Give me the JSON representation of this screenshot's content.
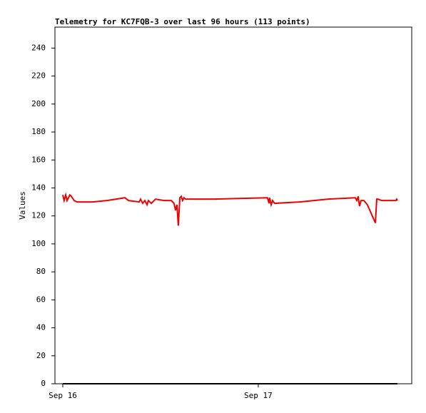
{
  "chart_data": {
    "type": "line",
    "title": "Telemetry for KC7FQB-3 over last 96 hours (113 points)",
    "y_label": "Values",
    "xlim": [
      -0.04,
      1.785
    ],
    "xticks": [
      {
        "value": 0,
        "label": "Sep 16"
      },
      {
        "value": 1,
        "label": "Sep 17"
      }
    ],
    "ylim": [
      0,
      255
    ],
    "yticks": [
      0,
      20,
      40,
      60,
      80,
      100,
      120,
      140,
      160,
      180,
      200,
      220,
      240
    ],
    "grid": false,
    "series": [
      {
        "color": "#000000",
        "x": [
          0,
          1.712
        ],
        "values": [
          0,
          0
        ]
      },
      {
        "color": "#ee0000",
        "x": [
          0,
          0.007,
          0.015,
          0.022,
          0.029,
          0.036,
          0.044,
          0.058,
          0.073,
          0.153,
          0.226,
          0.318,
          0.336,
          0.391,
          0.398,
          0.409,
          0.42,
          0.431,
          0.438,
          0.453,
          0.467,
          0.474,
          0.518,
          0.555,
          0.569,
          0.577,
          0.584,
          0.591,
          0.599,
          0.606,
          0.613,
          0.62,
          0.628,
          0.774,
          1.047,
          1.055,
          1.058,
          1.066,
          1.073,
          1.084,
          1.212,
          1.358,
          1.496,
          1.504,
          1.511,
          1.518,
          1.526,
          1.54,
          1.558,
          1.577,
          1.599,
          1.606,
          1.613,
          1.631,
          1.704,
          1.708,
          1.712
        ],
        "values": [
          135,
          131,
          135,
          131,
          133,
          135,
          134,
          131,
          130,
          130,
          131,
          133,
          131,
          130,
          132,
          129,
          131,
          128,
          131,
          129,
          131,
          132,
          131,
          131,
          129,
          124,
          128,
          113,
          133,
          134,
          131,
          133,
          132,
          132,
          133,
          129,
          133,
          128,
          131,
          129,
          130,
          132,
          133,
          131,
          134,
          127,
          131,
          131,
          128,
          122,
          115,
          132,
          132,
          131,
          131,
          132,
          131
        ]
      }
    ]
  }
}
